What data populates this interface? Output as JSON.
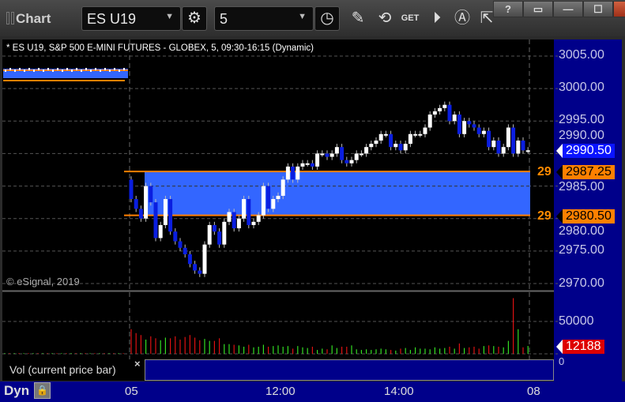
{
  "window": {
    "title": "Chart",
    "buttons": [
      "?",
      "▭",
      "—",
      "☐",
      "X"
    ]
  },
  "toolbar": {
    "symbol": "ES U19",
    "interval": "5",
    "icons": [
      "pencil-icon",
      "line-study-icon",
      "get-icon",
      "play-icon",
      "alert-icon",
      "cursor-icon"
    ],
    "get_label": "GET"
  },
  "chart": {
    "title": "* ES U19, S&P 500 E-MINI FUTURES - GLOBEX, 5, 09:30-16:15 (Dynamic)",
    "copyright": "© eSignal, 2019",
    "price_axis": [
      "3005.00",
      "3000.00",
      "2995.00",
      "2990.00",
      "2985.00",
      "2980.00",
      "2975.00",
      "2970.00"
    ],
    "last_price": "2990.50",
    "zone_top": "2987.25",
    "zone_bottom": "2980.50",
    "zone_label": "29",
    "volume_axis": [
      "50000",
      "0"
    ],
    "last_volume": "12188",
    "volume_legend": "Vol (current price bar)",
    "time_axis": [
      "05",
      "12:00",
      "14:00",
      "08"
    ],
    "scale_mode": "Dyn",
    "colors": {
      "up": "#ffffff",
      "down": "#0a1ee0",
      "zone": "#3366ff",
      "zone_line": "#ff8000",
      "vol_up": "#33dd22",
      "vol_down": "#dd1111",
      "axis_bg": "#00008a",
      "last_price_bg": "#0a14ff",
      "last_vol_bg": "#dd0000"
    }
  },
  "chart_data": {
    "type": "candlestick",
    "first_open": 2986,
    "close": [
      2983,
      2981.5,
      2980,
      2985,
      2982.5,
      2977,
      2979,
      2983,
      2978,
      2976.5,
      2975.5,
      2974.5,
      2973,
      2972,
      2971.5,
      2976,
      2979,
      2978,
      2976,
      2979.5,
      2981,
      2978.5,
      2980,
      2983,
      2979,
      2979.5,
      2980.5,
      2985,
      2981.5,
      2983,
      2983.5,
      2986,
      2988,
      2986,
      2988,
      2988.5,
      2988.5,
      2988,
      2990,
      2990,
      2989.5,
      2990,
      2991,
      2989,
      2988.5,
      2989,
      2990,
      2990,
      2991,
      2991.5,
      2992,
      2993,
      2993,
      2991,
      2991.5,
      2990.5,
      2991.5,
      2993,
      2993,
      2993,
      2994,
      2996,
      2996.5,
      2997,
      2997.5,
      2995,
      2996,
      2993,
      2995,
      2994.5,
      2994,
      2993,
      2993.5,
      2991,
      2992,
      2990,
      2991,
      2994,
      2990,
      2992,
      2990.5,
      2990.5
    ],
    "volume": [
      38000,
      32000,
      29000,
      22000,
      27000,
      24000,
      21000,
      25000,
      24000,
      27000,
      22000,
      26000,
      29000,
      25000,
      21000,
      23000,
      20000,
      20000,
      24000,
      15000,
      15000,
      14000,
      13000,
      11000,
      14000,
      10000,
      11000,
      14000,
      11000,
      12000,
      13000,
      11000,
      12000,
      8000,
      12000,
      10000,
      9000,
      11000,
      6000,
      8000,
      7000,
      13000,
      9000,
      11000,
      11000,
      13000,
      7000,
      6000,
      7000,
      6000,
      7000,
      8000,
      7000,
      6000,
      5000,
      8000,
      9000,
      6000,
      10000,
      8000,
      8000,
      7000,
      10000,
      8000,
      9000,
      11000,
      8000,
      16000,
      9000,
      10000,
      11000,
      8000,
      12000,
      13000,
      12000,
      11000,
      10000,
      20000,
      86000,
      38000,
      10000,
      12188
    ],
    "price_range": [
      2970,
      3005
    ],
    "sessions": [
      "05",
      "08"
    ]
  }
}
